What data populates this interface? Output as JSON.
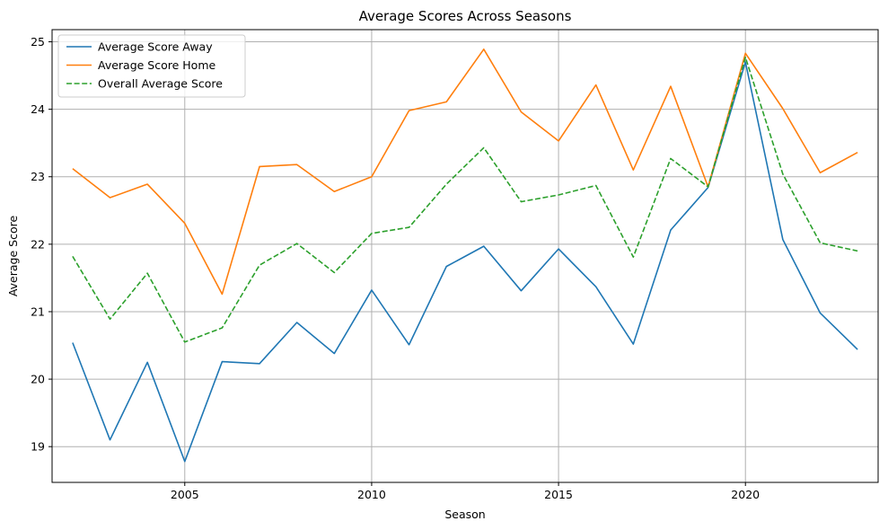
{
  "chart_data": {
    "type": "line",
    "title": "Average Scores Across Seasons",
    "xlabel": "Season",
    "ylabel": "Average Score",
    "x": [
      2002,
      2003,
      2004,
      2005,
      2006,
      2007,
      2008,
      2009,
      2010,
      2011,
      2012,
      2013,
      2014,
      2015,
      2016,
      2017,
      2018,
      2019,
      2020,
      2021,
      2022,
      2023
    ],
    "xlim": [
      2001.45,
      2023.55
    ],
    "ylim": [
      18.47,
      25.18
    ],
    "xticks": [
      2005,
      2010,
      2015,
      2020
    ],
    "xtick_labels": [
      "2005",
      "2010",
      "2015",
      "2020"
    ],
    "yticks": [
      19,
      20,
      21,
      22,
      23,
      24,
      25
    ],
    "ytick_labels": [
      "19",
      "20",
      "21",
      "22",
      "23",
      "24",
      "25"
    ],
    "grid": true,
    "legend_position": "top-left",
    "series": [
      {
        "name": "Average Score Away",
        "color": "#1f77b4",
        "style": "solid",
        "values": [
          20.54,
          19.1,
          20.25,
          18.78,
          20.26,
          20.23,
          20.84,
          20.38,
          21.32,
          20.51,
          21.67,
          21.97,
          21.31,
          21.93,
          21.37,
          20.52,
          22.21,
          22.84,
          24.7,
          22.07,
          20.98,
          20.44
        ]
      },
      {
        "name": "Average Score Home",
        "color": "#ff7f0e",
        "style": "solid",
        "values": [
          23.12,
          22.69,
          22.89,
          22.31,
          21.26,
          23.15,
          23.18,
          22.78,
          23.0,
          23.98,
          24.11,
          24.89,
          23.96,
          23.53,
          24.36,
          23.1,
          24.34,
          22.85,
          24.83,
          24.01,
          23.06,
          23.36
        ]
      },
      {
        "name": "Overall Average Score",
        "color": "#2ca02c",
        "style": "dashed",
        "values": [
          21.82,
          20.89,
          21.57,
          20.55,
          20.76,
          21.69,
          22.01,
          21.58,
          22.16,
          22.25,
          22.89,
          23.43,
          22.63,
          22.73,
          22.87,
          21.81,
          23.27,
          22.85,
          24.77,
          23.04,
          22.02,
          21.9
        ]
      }
    ]
  }
}
